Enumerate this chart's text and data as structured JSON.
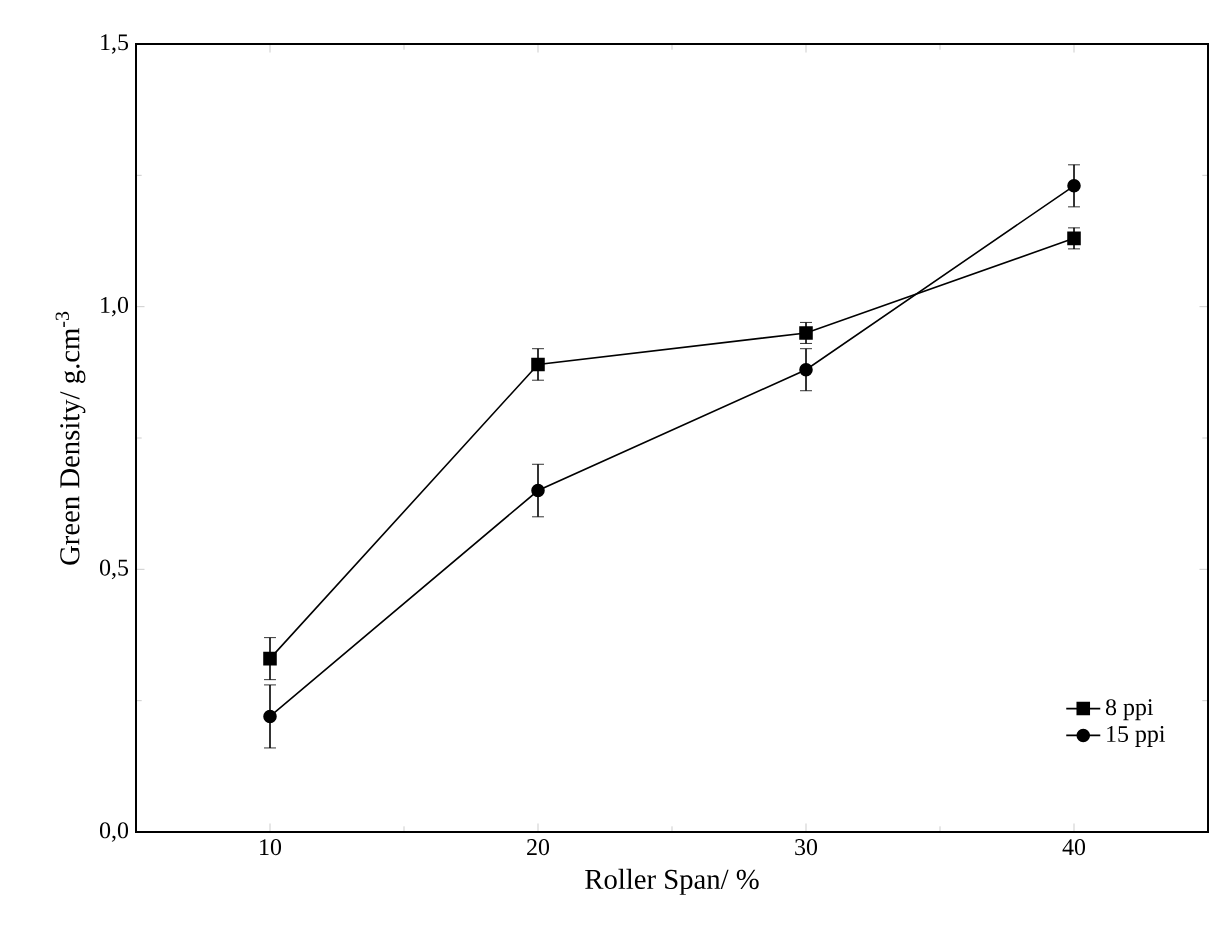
{
  "chart_data": {
    "type": "line",
    "xlabel": "Roller Span/ %",
    "ylabel": "Green Density/ g.cm$^{-3}$",
    "x": [
      10,
      20,
      30,
      40
    ],
    "series": [
      {
        "name": "8 ppi",
        "color": "#000000",
        "marker": "square",
        "values": [
          0.33,
          0.89,
          0.95,
          1.13
        ],
        "errors": [
          0.04,
          0.03,
          0.02,
          0.02
        ]
      },
      {
        "name": "15 ppi",
        "color": "#000000",
        "marker": "circle",
        "values": [
          0.22,
          0.65,
          0.88,
          1.23
        ],
        "errors": [
          0.06,
          0.05,
          0.04,
          0.04
        ]
      }
    ],
    "xlim": [
      5,
      45
    ],
    "ylim": [
      0,
      1.5
    ],
    "xticks": [
      10,
      20,
      30,
      40
    ],
    "yticks": [
      {
        "value": 0,
        "label": "0,0"
      },
      {
        "value": 0.5,
        "label": "0,5"
      },
      {
        "value": 1.0,
        "label": "1,0"
      },
      {
        "value": 1.5,
        "label": "1,5"
      }
    ],
    "grid": false,
    "legend": "bottom right",
    "line_style": "solid"
  }
}
